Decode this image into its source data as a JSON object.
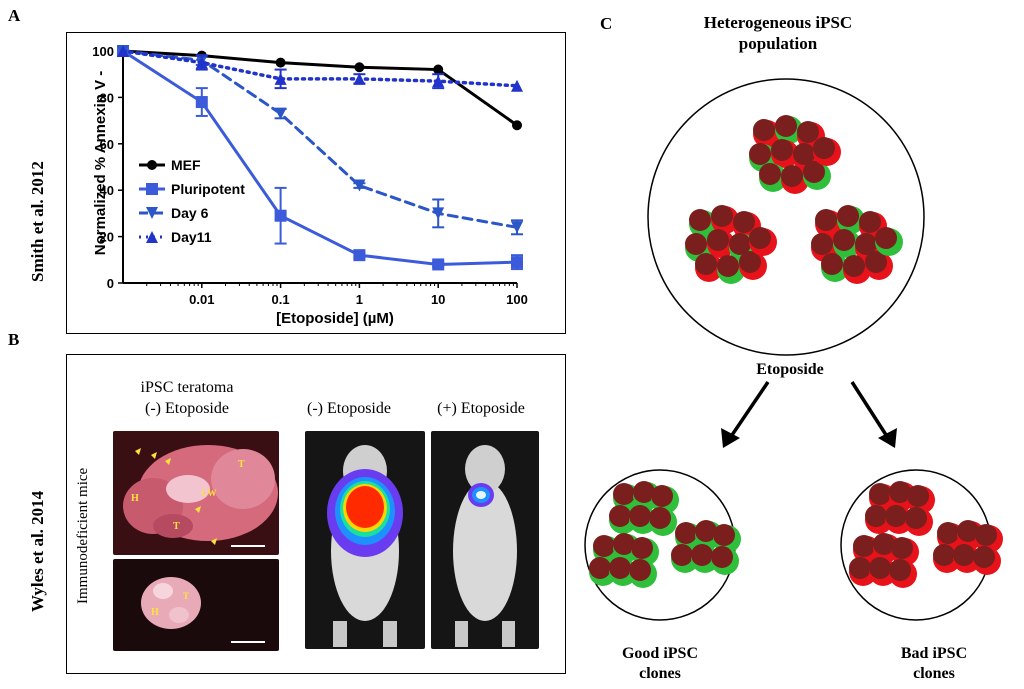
{
  "panels": {
    "a": {
      "letter": "A",
      "side_label": "Smith et al. 2012"
    },
    "b": {
      "letter": "B",
      "side_label": "Wyles et al. 2014",
      "teratoma_title_1": "iPSC teratoma",
      "teratoma_title_2": "(-) Etoposide",
      "mid_title": "(-) Etoposide",
      "right_title": "(+) Etoposide",
      "vertical_label": "Immunodeficient  mice",
      "photo_labels": [
        "T",
        "H",
        "CW",
        "T",
        "H",
        "T"
      ]
    },
    "c": {
      "letter": "C",
      "top_title_1": "Heterogeneous iPSC",
      "top_title_2": "population",
      "treatment": "Etoposide",
      "good_1": "Good iPSC",
      "good_2": "clones",
      "bad_1": "Bad iPSC",
      "bad_2": "clones"
    }
  },
  "colors": {
    "mef": "#000000",
    "series_blue": "#3b5bdb",
    "day6": "#2b56c8",
    "day11": "#2233cc",
    "cell_red": "#e8121a",
    "cell_green": "#2fbf3a",
    "cell_nucleus": "#7a1e1e"
  },
  "chart_data": {
    "type": "line",
    "xlabel": "[Etoposide]  (µM)",
    "ylabel": "Normalized % Annexin V -",
    "x_scale": "log",
    "x_tick_labels": [
      "0.01",
      "0.1",
      "1",
      "10",
      "100"
    ],
    "y_ticks": [
      "0",
      "20",
      "40",
      "60",
      "80",
      "100"
    ],
    "ylim": [
      0,
      100
    ],
    "legend_position": "left-middle",
    "series": [
      {
        "name": "MEF",
        "style": "solid",
        "marker": "circle",
        "color": "#000000",
        "x": [
          0.001,
          0.01,
          0.1,
          1,
          10,
          100
        ],
        "y": [
          100,
          98,
          95,
          93,
          92,
          68
        ],
        "err": [
          0,
          0,
          0,
          0,
          0,
          0
        ]
      },
      {
        "name": "Pluripotent",
        "style": "solid",
        "marker": "square",
        "color": "#3b5bdb",
        "x": [
          0.001,
          0.01,
          0.1,
          1,
          10,
          100
        ],
        "y": [
          100,
          78,
          29,
          12,
          8,
          9
        ],
        "err": [
          0,
          6,
          12,
          1,
          1,
          3
        ]
      },
      {
        "name": "Day 6",
        "style": "dashed",
        "marker": "triangle-down",
        "color": "#2b56c8",
        "x": [
          0.001,
          0.01,
          0.1,
          1,
          10,
          100
        ],
        "y": [
          100,
          96,
          73,
          42,
          30,
          24
        ],
        "err": [
          0,
          2,
          2,
          1,
          6,
          3
        ]
      },
      {
        "name": "Day11",
        "style": "dotted",
        "marker": "triangle-up",
        "color": "#2233cc",
        "x": [
          0.001,
          0.01,
          0.1,
          1,
          10,
          100
        ],
        "y": [
          100,
          95,
          88,
          88,
          87,
          85
        ],
        "err": [
          0,
          3,
          4,
          2,
          3,
          0
        ]
      }
    ]
  }
}
